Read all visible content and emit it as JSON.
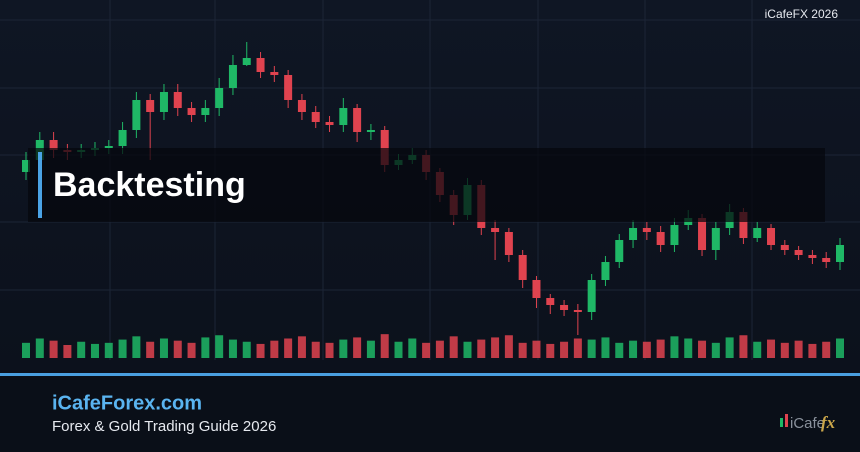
{
  "watermark": "iCafeFX 2026",
  "headline": "Backtesting",
  "footer": {
    "site": "iCafeForex.com",
    "tagline": "Forex & Gold Trading Guide 2026"
  },
  "logo": {
    "text": "iCafe",
    "accent": "fx"
  },
  "chart_data": {
    "type": "candlestick",
    "open": [
      188,
      200,
      220,
      210,
      208,
      210,
      212,
      214,
      230,
      260,
      248,
      268,
      252,
      245,
      252,
      272,
      295,
      302,
      288,
      285,
      260,
      248,
      238,
      235,
      252,
      228,
      230,
      195,
      200,
      205,
      188,
      165,
      145,
      175,
      132,
      128,
      105,
      80,
      62,
      55,
      50,
      48,
      80,
      98,
      120,
      132,
      128,
      115,
      135,
      142,
      110,
      132,
      148,
      122,
      132,
      115,
      110,
      105,
      102,
      98
    ],
    "high": [
      208,
      228,
      228,
      216,
      216,
      218,
      220,
      238,
      268,
      266,
      276,
      276,
      258,
      260,
      282,
      305,
      318,
      308,
      294,
      290,
      266,
      254,
      244,
      262,
      256,
      236,
      234,
      206,
      212,
      210,
      192,
      170,
      182,
      180,
      140,
      132,
      110,
      84,
      66,
      60,
      56,
      86,
      104,
      126,
      140,
      138,
      134,
      142,
      150,
      146,
      138,
      156,
      152,
      138,
      136,
      120,
      114,
      110,
      108,
      122
    ],
    "low": [
      180,
      192,
      202,
      200,
      202,
      204,
      206,
      206,
      222,
      200,
      240,
      244,
      238,
      238,
      244,
      265,
      294,
      282,
      278,
      252,
      240,
      232,
      228,
      228,
      218,
      220,
      188,
      190,
      196,
      180,
      158,
      135,
      140,
      125,
      100,
      98,
      72,
      52,
      46,
      44,
      25,
      40,
      74,
      92,
      112,
      120,
      108,
      108,
      130,
      104,
      100,
      125,
      116,
      118,
      110,
      105,
      100,
      96,
      92,
      90
    ],
    "close": [
      200,
      220,
      210,
      208,
      210,
      212,
      214,
      230,
      260,
      248,
      268,
      252,
      245,
      252,
      272,
      295,
      302,
      288,
      285,
      260,
      248,
      238,
      235,
      252,
      228,
      230,
      195,
      200,
      205,
      188,
      165,
      145,
      175,
      132,
      128,
      105,
      80,
      62,
      55,
      50,
      48,
      80,
      98,
      120,
      132,
      128,
      115,
      135,
      142,
      110,
      132,
      148,
      122,
      132,
      115,
      110,
      105,
      102,
      98,
      115
    ],
    "volume": [
      14,
      18,
      16,
      12,
      15,
      13,
      14,
      17,
      20,
      15,
      18,
      16,
      14,
      19,
      21,
      17,
      15,
      13,
      16,
      18,
      20,
      15,
      14,
      17,
      19,
      16,
      22,
      15,
      18,
      14,
      16,
      20,
      15,
      17,
      19,
      21,
      14,
      16,
      13,
      15,
      18,
      17,
      19,
      14,
      16,
      15,
      17,
      20,
      18,
      16,
      14,
      19,
      21,
      15,
      17,
      14,
      16,
      13,
      15,
      18
    ],
    "ylim": [
      0,
      360
    ],
    "y2lim": [
      0,
      24
    ],
    "up_color": "#1fb866",
    "down_color": "#e0434f"
  }
}
